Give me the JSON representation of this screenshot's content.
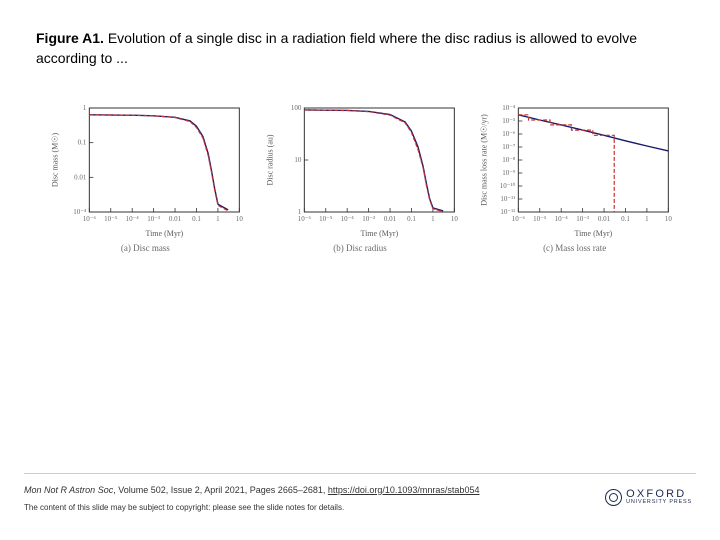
{
  "caption": {
    "label": "Figure A1.",
    "text": "Evolution of a single disc in a radiation field where the disc radius is allowed to evolve according to ..."
  },
  "panels": [
    {
      "sub_caption": "(a) Disc mass",
      "ylabel": "Disc mass (M☉)",
      "xlabel": "Time (Myr)",
      "xlim": [
        1e-06,
        10
      ],
      "ylim": [
        0.0001,
        1
      ],
      "xticks": [
        "10⁻⁶",
        "10⁻⁵",
        "10⁻⁴",
        "10⁻³",
        "0.01",
        "0.1",
        "1",
        "10"
      ],
      "yticks": [
        "10⁻⁴",
        "0.01",
        "0.1",
        "1"
      ],
      "series": [
        {
          "style": "solid",
          "color": "#1a1a6a",
          "width": 1.4,
          "points": [
            [
              1e-06,
              0.55
            ],
            [
              0.0001,
              0.53
            ],
            [
              0.001,
              0.5
            ],
            [
              0.01,
              0.44
            ],
            [
              0.05,
              0.32
            ],
            [
              0.1,
              0.2
            ],
            [
              0.2,
              0.08
            ],
            [
              0.35,
              0.018
            ],
            [
              0.5,
              0.004
            ],
            [
              0.7,
              0.0008
            ],
            [
              1,
              0.0002
            ],
            [
              3,
              0.00012
            ]
          ]
        },
        {
          "style": "dash",
          "color": "#c83030",
          "width": 1.2,
          "points": [
            [
              1e-06,
              0.55
            ],
            [
              0.0001,
              0.53
            ],
            [
              0.001,
              0.5
            ],
            [
              0.01,
              0.43
            ],
            [
              0.05,
              0.3
            ],
            [
              0.1,
              0.18
            ],
            [
              0.2,
              0.07
            ],
            [
              0.35,
              0.015
            ],
            [
              0.5,
              0.0035
            ],
            [
              0.7,
              0.0007
            ],
            [
              1,
              0.00018
            ],
            [
              3,
              0.00011
            ]
          ]
        }
      ]
    },
    {
      "sub_caption": "(b) Disc radius",
      "ylabel": "Disc radius (au)",
      "xlabel": "Time (Myr)",
      "xlim": [
        1e-06,
        10
      ],
      "ylim": [
        1,
        100
      ],
      "xticks": [
        "10⁻⁶",
        "10⁻⁵",
        "10⁻⁴",
        "10⁻³",
        "0.01",
        "0.1",
        "1",
        "10"
      ],
      "yticks": [
        "1",
        "10",
        "100"
      ],
      "series": [
        {
          "style": "solid",
          "color": "#1a1a6a",
          "width": 1.4,
          "points": [
            [
              1e-06,
              92
            ],
            [
              0.0001,
              90
            ],
            [
              0.001,
              86
            ],
            [
              0.01,
              75
            ],
            [
              0.05,
              54
            ],
            [
              0.1,
              36
            ],
            [
              0.2,
              18
            ],
            [
              0.35,
              7.5
            ],
            [
              0.5,
              3.5
            ],
            [
              0.7,
              1.8
            ],
            [
              1,
              1.2
            ],
            [
              3,
              1.05
            ]
          ]
        },
        {
          "style": "dash",
          "color": "#c83030",
          "width": 1.2,
          "points": [
            [
              1e-06,
              92
            ],
            [
              0.0001,
              90
            ],
            [
              0.001,
              85
            ],
            [
              0.01,
              73
            ],
            [
              0.05,
              52
            ],
            [
              0.1,
              34
            ],
            [
              0.2,
              16
            ],
            [
              0.35,
              7
            ],
            [
              0.5,
              3.2
            ],
            [
              0.7,
              1.7
            ],
            [
              1,
              1.15
            ],
            [
              3,
              1.02
            ]
          ]
        }
      ]
    },
    {
      "sub_caption": "(c) Mass loss rate",
      "ylabel": "Disc mass loss rate (M☉/yr)",
      "xlabel": "Time (Myr)",
      "xlim": [
        1e-06,
        10
      ],
      "ylim": [
        1e-12,
        0.0001
      ],
      "xticks": [
        "10⁻⁶",
        "10⁻⁵",
        "10⁻⁴",
        "10⁻³",
        "0.01",
        "0.1",
        "1",
        "10"
      ],
      "yticks": [
        "10⁻¹²",
        "10⁻¹¹",
        "10⁻¹⁰",
        "10⁻⁹",
        "10⁻⁸",
        "10⁻⁷",
        "10⁻⁶",
        "10⁻⁵",
        "10⁻⁴"
      ],
      "series": [
        {
          "style": "solid",
          "color": "#1a1a6a",
          "width": 1.4,
          "points": [
            [
              1e-06,
              3e-05
            ],
            [
              1e-05,
              1.2e-05
            ],
            [
              0.0001,
              5e-06
            ],
            [
              0.001,
              2e-06
            ],
            [
              0.01,
              8e-07
            ],
            [
              0.1,
              3e-07
            ],
            [
              1,
              1.2e-07
            ],
            [
              10,
              5e-08
            ]
          ]
        },
        {
          "style": "step",
          "color": "#c83030",
          "width": 1.2,
          "points": [
            [
              1e-06,
              3e-05
            ],
            [
              3e-06,
              3e-05
            ],
            [
              3e-06,
              1.2e-05
            ],
            [
              3e-05,
              1.2e-05
            ],
            [
              3e-05,
              5e-06
            ],
            [
              0.0003,
              5e-06
            ],
            [
              0.0003,
              2e-06
            ],
            [
              0.003,
              2e-06
            ],
            [
              0.003,
              8e-07
            ],
            [
              0.03,
              8e-07
            ],
            [
              0.03,
              1e-12
            ]
          ]
        }
      ]
    }
  ],
  "citation": {
    "journal": "Mon Not R Astron Soc",
    "volume_issue": ", Volume 502, Issue 2, April 2021, Pages 2665–2681, ",
    "doi_text": "https://doi.org/10.1093/mnras/stab054",
    "doi_href": "https://doi.org/10.1093/mnras/stab054"
  },
  "copyright": "The content of this slide may be subject to copyright: please see the slide notes for details.",
  "publisher": {
    "name": "OXFORD",
    "sub": "UNIVERSITY PRESS",
    "color": "#1a2a54"
  },
  "colors": {
    "frame": "#333333",
    "bg": "#ffffff",
    "grid": "#e0e0e0"
  },
  "fonts": {
    "caption_size": 14,
    "sub_size": 9,
    "tick_size": 7,
    "axis_label_size": 8
  }
}
